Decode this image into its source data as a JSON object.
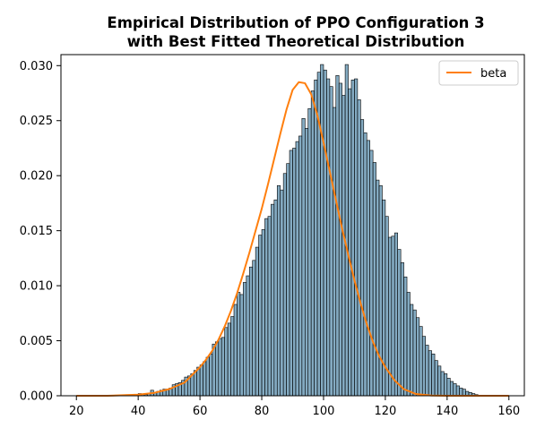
{
  "chart_data": {
    "type": "bar",
    "title_lines": [
      "Empirical Distribution of PPO Configuration 3",
      "with Best Fitted Theoretical Distribution"
    ],
    "xlabel": "",
    "ylabel": "",
    "xlim": [
      15,
      165
    ],
    "ylim": [
      0,
      0.031
    ],
    "xticks": [
      20,
      40,
      60,
      80,
      100,
      120,
      140,
      160
    ],
    "xtick_labels": [
      "20",
      "40",
      "60",
      "80",
      "100",
      "120",
      "140",
      "160"
    ],
    "yticks": [
      0.0,
      0.005,
      0.01,
      0.015,
      0.02,
      0.025,
      0.03
    ],
    "ytick_labels": [
      "0.000",
      "0.005",
      "0.010",
      "0.015",
      "0.020",
      "0.025",
      "0.030"
    ],
    "grid": false,
    "histogram": {
      "bin_width": 1.0,
      "bin_start": 36,
      "density": [
        0.0001,
        0.0001,
        0.0,
        0.0,
        0.0002,
        0.0001,
        0.0001,
        0.0002,
        0.0005,
        0.0003,
        0.0004,
        0.0005,
        0.0006,
        0.0006,
        0.0007,
        0.001,
        0.0011,
        0.0012,
        0.0014,
        0.0017,
        0.0018,
        0.002,
        0.0023,
        0.0026,
        0.0028,
        0.0031,
        0.0035,
        0.0038,
        0.0047,
        0.0049,
        0.0052,
        0.0053,
        0.0062,
        0.0066,
        0.0072,
        0.0083,
        0.0094,
        0.0092,
        0.0103,
        0.0109,
        0.0117,
        0.0123,
        0.0135,
        0.0146,
        0.0151,
        0.0161,
        0.0163,
        0.0174,
        0.0178,
        0.0191,
        0.0187,
        0.0202,
        0.0211,
        0.0223,
        0.0225,
        0.0231,
        0.0236,
        0.0252,
        0.0243,
        0.0261,
        0.0277,
        0.0287,
        0.0294,
        0.0301,
        0.0296,
        0.0288,
        0.0281,
        0.0262,
        0.0291,
        0.0284,
        0.0273,
        0.0301,
        0.0279,
        0.0287,
        0.0288,
        0.0269,
        0.0251,
        0.0239,
        0.0232,
        0.0223,
        0.0212,
        0.0196,
        0.0191,
        0.0178,
        0.0163,
        0.0144,
        0.0145,
        0.0148,
        0.0133,
        0.0121,
        0.0108,
        0.0094,
        0.0083,
        0.0078,
        0.0071,
        0.0063,
        0.0054,
        0.0046,
        0.0041,
        0.0038,
        0.0032,
        0.0027,
        0.0022,
        0.002,
        0.0016,
        0.0013,
        0.0011,
        0.0009,
        0.0007,
        0.0006,
        0.0004,
        0.0003,
        0.0002,
        0.0001
      ],
      "bar_color": "#5b8fae",
      "bar_edge": "#000000"
    },
    "series": [
      {
        "name": "beta",
        "color": "#ff7f0e",
        "x": [
          20,
          30,
          35,
          40,
          45,
          50,
          55,
          60,
          62,
          64,
          66,
          68,
          70,
          72,
          74,
          76,
          78,
          80,
          82,
          84,
          86,
          88,
          90,
          92,
          94,
          96,
          98,
          100,
          102,
          104,
          106,
          108,
          110,
          112,
          114,
          116,
          118,
          120,
          123,
          126,
          130,
          135,
          140,
          150,
          160
        ],
        "y": [
          0.0,
          0.0,
          5e-05,
          0.0001,
          0.00025,
          0.0006,
          0.0012,
          0.0026,
          0.0033,
          0.0041,
          0.0051,
          0.0063,
          0.0077,
          0.0093,
          0.0111,
          0.013,
          0.015,
          0.017,
          0.0192,
          0.0215,
          0.0238,
          0.026,
          0.0278,
          0.0285,
          0.0284,
          0.0274,
          0.0255,
          0.023,
          0.0204,
          0.0178,
          0.0152,
          0.0128,
          0.0105,
          0.0084,
          0.0065,
          0.0049,
          0.0036,
          0.0026,
          0.0014,
          0.0006,
          0.00015,
          2e-05,
          0.0,
          0.0,
          0.0
        ]
      }
    ],
    "legend": {
      "position": "top-right",
      "entries": [
        "beta"
      ]
    }
  }
}
